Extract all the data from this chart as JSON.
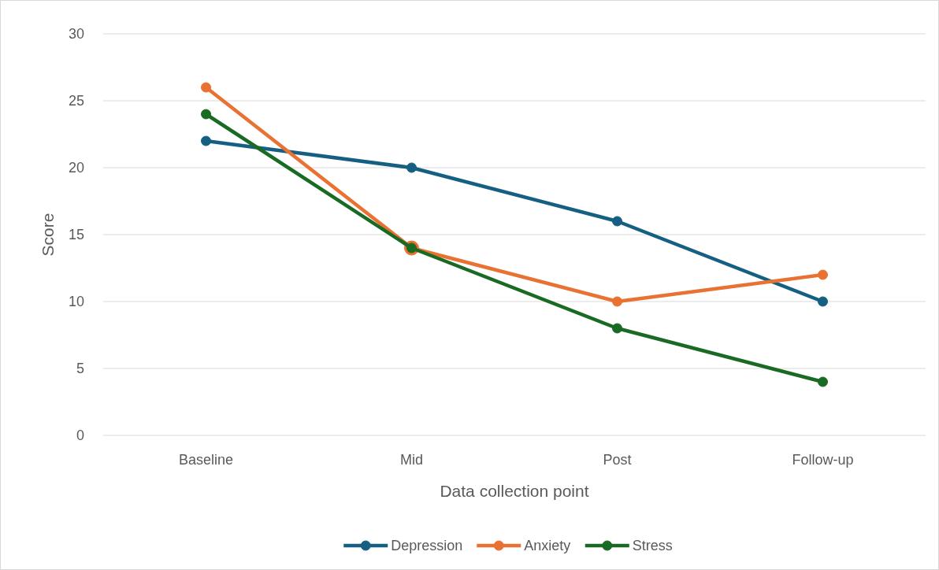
{
  "chart_data": {
    "type": "line",
    "xlabel": "Data collection point",
    "ylabel": "Score",
    "categories": [
      "Baseline",
      "Mid",
      "Post",
      "Follow-up"
    ],
    "series": [
      {
        "name": "Depression",
        "color": "#156082",
        "values": [
          22,
          20,
          16,
          10
        ]
      },
      {
        "name": "Anxiety",
        "color": "#e97132",
        "values": [
          26,
          14,
          10,
          12
        ]
      },
      {
        "name": "Stress",
        "color": "#196b24",
        "values": [
          24,
          14,
          8,
          4
        ]
      }
    ],
    "ylim": [
      0,
      30
    ],
    "yticks": [
      0,
      5,
      10,
      15,
      20,
      25,
      30
    ],
    "grid": "y",
    "legend": "bottom",
    "marker": "circle",
    "line_style": "solid"
  }
}
